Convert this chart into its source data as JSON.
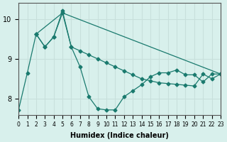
{
  "xlabel": "Humidex (Indice chaleur)",
  "ylabel": "",
  "bg_color": "#d8f0ec",
  "grid_color": "#c8e0dc",
  "line_color": "#1a7a6e",
  "xlim": [
    0,
    23
  ],
  "ylim": [
    7.6,
    10.4
  ],
  "yticks": [
    8,
    9,
    10
  ],
  "xticks": [
    0,
    1,
    2,
    3,
    4,
    5,
    6,
    7,
    8,
    9,
    10,
    11,
    12,
    13,
    14,
    15,
    16,
    17,
    18,
    19,
    20,
    21,
    22,
    23
  ],
  "line1_x": [
    0,
    1,
    2,
    3,
    4,
    5,
    6,
    7,
    8,
    9,
    10,
    11,
    12,
    13,
    14,
    15,
    16,
    17,
    18,
    19,
    20,
    21,
    22,
    23
  ],
  "line1_y": [
    7.72,
    8.65,
    9.62,
    9.3,
    9.55,
    10.2,
    9.3,
    8.8,
    8.05,
    7.75,
    7.72,
    7.72,
    8.05,
    8.2,
    8.35,
    8.55,
    8.65,
    8.65,
    8.72,
    8.6,
    8.6,
    8.42,
    8.62,
    8.62
  ],
  "line2_x": [
    2,
    3,
    4,
    5,
    6,
    7,
    8,
    9,
    10,
    11,
    12,
    13,
    14,
    15,
    16,
    17,
    18,
    19,
    20,
    21,
    22,
    23
  ],
  "line2_y": [
    9.62,
    9.3,
    9.55,
    10.15,
    9.3,
    9.2,
    9.1,
    9.0,
    8.9,
    8.8,
    8.7,
    8.6,
    8.5,
    8.45,
    8.4,
    8.38,
    8.36,
    8.34,
    8.32,
    8.62,
    8.5,
    8.62
  ],
  "line3_x": [
    2,
    5,
    23
  ],
  "line3_y": [
    9.62,
    10.15,
    8.62
  ]
}
